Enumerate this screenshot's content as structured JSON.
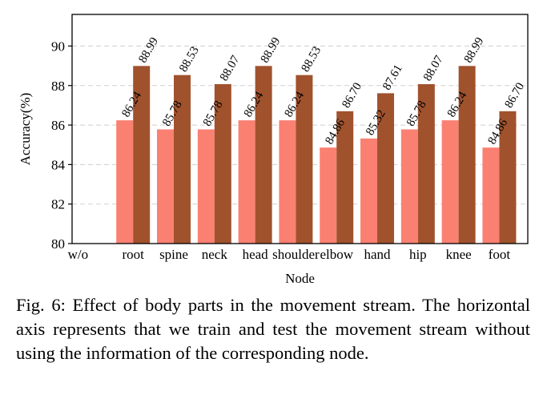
{
  "chart_data": {
    "type": "bar",
    "categories": [
      "w/o",
      "root",
      "spine",
      "neck",
      "head",
      "shoulder",
      "elbow",
      "hand",
      "hip",
      "knee",
      "foot"
    ],
    "series": [
      {
        "values": [
          null,
          86.24,
          85.78,
          85.78,
          86.24,
          86.24,
          84.86,
          85.32,
          85.78,
          86.24,
          84.86
        ],
        "labels": [
          "",
          "86.24",
          "85.78",
          "85.78",
          "86.24",
          "86.24",
          "84.86",
          "85.32",
          "85.78",
          "86.24",
          "84.86"
        ],
        "color": "#fa8072"
      },
      {
        "values": [
          null,
          88.99,
          88.53,
          88.07,
          88.99,
          88.53,
          86.7,
          87.61,
          88.07,
          88.99,
          86.7
        ],
        "labels": [
          "",
          "88.99",
          "88.53",
          "88.07",
          "88.99",
          "88.53",
          "86.70",
          "87.61",
          "88.07",
          "88.99",
          "86.70"
        ],
        "color": "#a0522d"
      }
    ],
    "xlabel": "Node",
    "ylabel": "Accuracy(%)",
    "ylim": [
      80,
      91.6
    ],
    "yticks": [
      80,
      82,
      84,
      86,
      88,
      90
    ],
    "grid": true,
    "legend": "none"
  },
  "caption": "Fig. 6: Effect of body parts in the movement stream. The horizontal axis represents that we train and test the movement stream without using the information of the corresponding node."
}
